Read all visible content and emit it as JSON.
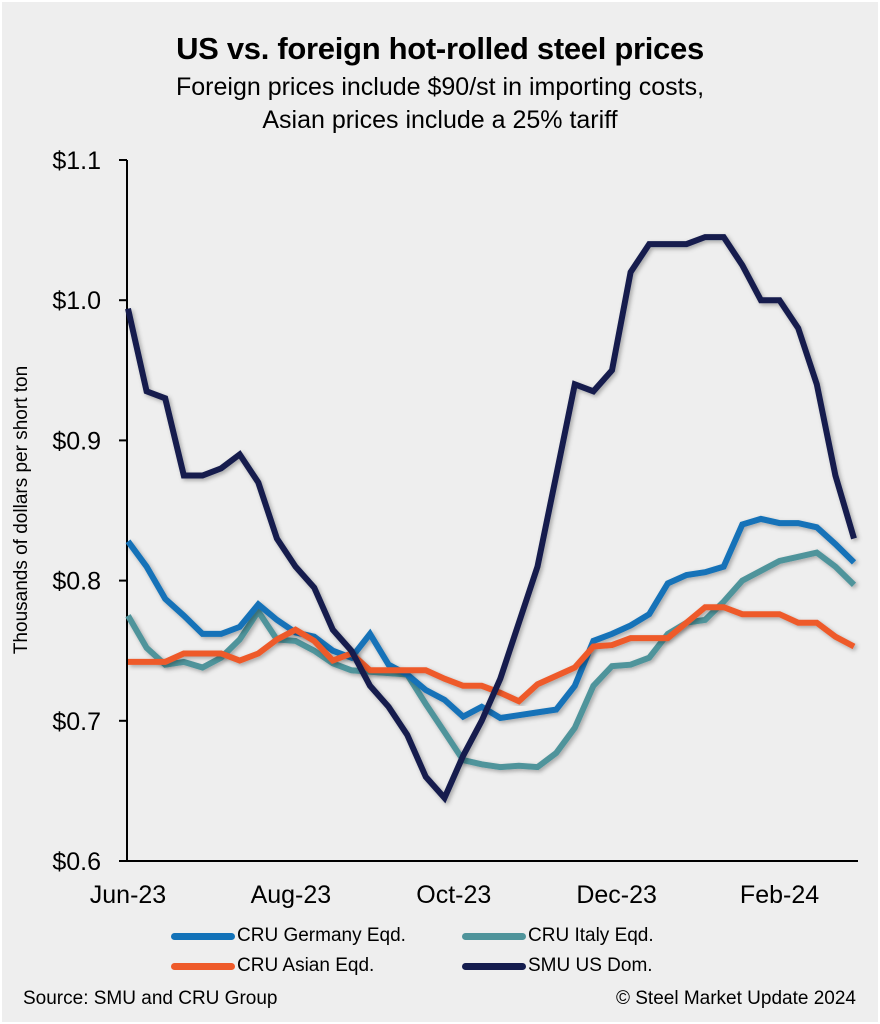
{
  "chart_data": {
    "type": "line",
    "title": "US vs. foreign hot-rolled steel prices",
    "subtitle_lines": [
      "Foreign prices include $90/st in importing costs,",
      "Asian prices include a 25% tariff"
    ],
    "ylabel": "Thousands of dollars per short ton",
    "xlabel": "",
    "ylim": [
      0.6,
      1.1
    ],
    "yticks": [
      {
        "value": 0.6,
        "label": "$0.6"
      },
      {
        "value": 0.7,
        "label": "$0.7"
      },
      {
        "value": 0.8,
        "label": "$0.8"
      },
      {
        "value": 0.9,
        "label": "$0.9"
      },
      {
        "value": 1.0,
        "label": "$1.0"
      },
      {
        "value": 1.1,
        "label": "$1.1"
      }
    ],
    "x_count": 40,
    "x_period": "weekly",
    "xticks": [
      {
        "index": 0,
        "label": "Jun-23"
      },
      {
        "index": 8.75,
        "label": "Aug-23"
      },
      {
        "index": 17.5,
        "label": "Oct-23"
      },
      {
        "index": 26.25,
        "label": "Dec-23"
      },
      {
        "index": 35,
        "label": "Feb-24"
      }
    ],
    "grid": false,
    "legend_position": "bottom",
    "series": [
      {
        "name": "CRU Germany Eqd.",
        "color": "#1272B8",
        "values": [
          0.828,
          0.81,
          0.787,
          0.775,
          0.762,
          0.762,
          0.767,
          0.783,
          0.772,
          0.763,
          0.76,
          0.75,
          0.745,
          0.762,
          0.74,
          0.733,
          0.722,
          0.715,
          0.703,
          0.71,
          0.702,
          0.704,
          0.706,
          0.708,
          0.725,
          0.757,
          0.762,
          0.768,
          0.776,
          0.798,
          0.804,
          0.806,
          0.81,
          0.84,
          0.844,
          0.841,
          0.841,
          0.838,
          0.826,
          0.813
        ]
      },
      {
        "name": "CRU Italy Eqd.",
        "color": "#4F949B",
        "values": [
          0.775,
          0.752,
          0.74,
          0.742,
          0.738,
          0.745,
          0.758,
          0.778,
          0.758,
          0.757,
          0.75,
          0.741,
          0.736,
          0.735,
          0.734,
          0.733,
          0.712,
          0.692,
          0.672,
          0.669,
          0.667,
          0.668,
          0.667,
          0.677,
          0.695,
          0.725,
          0.739,
          0.74,
          0.745,
          0.762,
          0.77,
          0.772,
          0.785,
          0.8,
          0.807,
          0.814,
          0.817,
          0.82,
          0.81,
          0.797
        ]
      },
      {
        "name": "CRU Asian Eqd.",
        "color": "#EE5A2A",
        "values": [
          0.742,
          0.742,
          0.742,
          0.748,
          0.748,
          0.748,
          0.743,
          0.748,
          0.758,
          0.765,
          0.757,
          0.743,
          0.748,
          0.736,
          0.736,
          0.736,
          0.736,
          0.73,
          0.725,
          0.725,
          0.72,
          0.714,
          0.726,
          0.732,
          0.738,
          0.753,
          0.754,
          0.759,
          0.759,
          0.759,
          0.77,
          0.781,
          0.781,
          0.776,
          0.776,
          0.776,
          0.77,
          0.77,
          0.76,
          0.753
        ]
      },
      {
        "name": "SMU US Dom.",
        "color": "#141C4E",
        "values": [
          0.994,
          0.935,
          0.93,
          0.875,
          0.875,
          0.88,
          0.89,
          0.87,
          0.83,
          0.81,
          0.795,
          0.765,
          0.75,
          0.725,
          0.71,
          0.69,
          0.66,
          0.645,
          0.675,
          0.7,
          0.73,
          0.77,
          0.81,
          0.875,
          0.94,
          0.935,
          0.95,
          1.02,
          1.04,
          1.04,
          1.04,
          1.045,
          1.045,
          1.025,
          1.0,
          1.0,
          0.98,
          0.94,
          0.875,
          0.83
        ]
      }
    ],
    "legend": [
      {
        "name": "CRU Germany Eqd.",
        "color": "#1272B8"
      },
      {
        "name": "CRU Italy Eqd.",
        "color": "#4F949B"
      },
      {
        "name": "CRU Asian Eqd.",
        "color": "#EE5A2A"
      },
      {
        "name": "SMU US Dom.",
        "color": "#141C4E"
      }
    ]
  },
  "footer": {
    "source": "Source: SMU and CRU Group",
    "copyright": "© Steel Market Update 2024"
  }
}
